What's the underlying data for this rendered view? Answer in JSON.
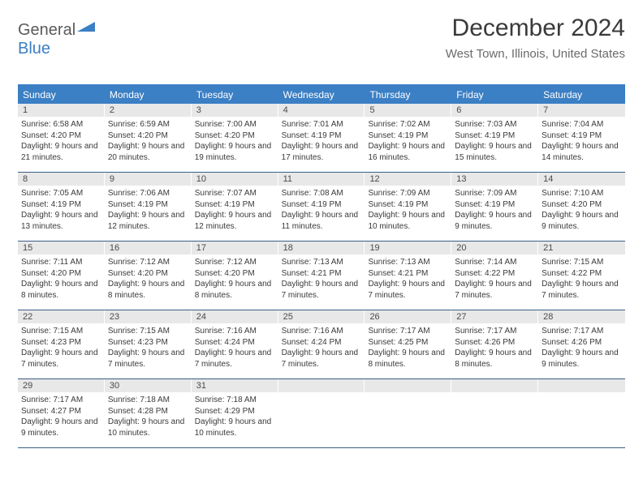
{
  "brand": {
    "part1": "General",
    "part2": "Blue"
  },
  "title": "December 2024",
  "location": "West Town, Illinois, United States",
  "colors": {
    "accent": "#3b7fc4",
    "header_bg": "#e8e8e8",
    "border": "#3b5f84",
    "text": "#3a3a3a",
    "muted": "#6a6a6a"
  },
  "day_labels": [
    "Sunday",
    "Monday",
    "Tuesday",
    "Wednesday",
    "Thursday",
    "Friday",
    "Saturday"
  ],
  "weeks": [
    [
      {
        "n": "1",
        "sunrise": "6:58 AM",
        "sunset": "4:20 PM",
        "daylight": "9 hours and 21 minutes."
      },
      {
        "n": "2",
        "sunrise": "6:59 AM",
        "sunset": "4:20 PM",
        "daylight": "9 hours and 20 minutes."
      },
      {
        "n": "3",
        "sunrise": "7:00 AM",
        "sunset": "4:20 PM",
        "daylight": "9 hours and 19 minutes."
      },
      {
        "n": "4",
        "sunrise": "7:01 AM",
        "sunset": "4:19 PM",
        "daylight": "9 hours and 17 minutes."
      },
      {
        "n": "5",
        "sunrise": "7:02 AM",
        "sunset": "4:19 PM",
        "daylight": "9 hours and 16 minutes."
      },
      {
        "n": "6",
        "sunrise": "7:03 AM",
        "sunset": "4:19 PM",
        "daylight": "9 hours and 15 minutes."
      },
      {
        "n": "7",
        "sunrise": "7:04 AM",
        "sunset": "4:19 PM",
        "daylight": "9 hours and 14 minutes."
      }
    ],
    [
      {
        "n": "8",
        "sunrise": "7:05 AM",
        "sunset": "4:19 PM",
        "daylight": "9 hours and 13 minutes."
      },
      {
        "n": "9",
        "sunrise": "7:06 AM",
        "sunset": "4:19 PM",
        "daylight": "9 hours and 12 minutes."
      },
      {
        "n": "10",
        "sunrise": "7:07 AM",
        "sunset": "4:19 PM",
        "daylight": "9 hours and 12 minutes."
      },
      {
        "n": "11",
        "sunrise": "7:08 AM",
        "sunset": "4:19 PM",
        "daylight": "9 hours and 11 minutes."
      },
      {
        "n": "12",
        "sunrise": "7:09 AM",
        "sunset": "4:19 PM",
        "daylight": "9 hours and 10 minutes."
      },
      {
        "n": "13",
        "sunrise": "7:09 AM",
        "sunset": "4:19 PM",
        "daylight": "9 hours and 9 minutes."
      },
      {
        "n": "14",
        "sunrise": "7:10 AM",
        "sunset": "4:20 PM",
        "daylight": "9 hours and 9 minutes."
      }
    ],
    [
      {
        "n": "15",
        "sunrise": "7:11 AM",
        "sunset": "4:20 PM",
        "daylight": "9 hours and 8 minutes."
      },
      {
        "n": "16",
        "sunrise": "7:12 AM",
        "sunset": "4:20 PM",
        "daylight": "9 hours and 8 minutes."
      },
      {
        "n": "17",
        "sunrise": "7:12 AM",
        "sunset": "4:20 PM",
        "daylight": "9 hours and 8 minutes."
      },
      {
        "n": "18",
        "sunrise": "7:13 AM",
        "sunset": "4:21 PM",
        "daylight": "9 hours and 7 minutes."
      },
      {
        "n": "19",
        "sunrise": "7:13 AM",
        "sunset": "4:21 PM",
        "daylight": "9 hours and 7 minutes."
      },
      {
        "n": "20",
        "sunrise": "7:14 AM",
        "sunset": "4:22 PM",
        "daylight": "9 hours and 7 minutes."
      },
      {
        "n": "21",
        "sunrise": "7:15 AM",
        "sunset": "4:22 PM",
        "daylight": "9 hours and 7 minutes."
      }
    ],
    [
      {
        "n": "22",
        "sunrise": "7:15 AM",
        "sunset": "4:23 PM",
        "daylight": "9 hours and 7 minutes."
      },
      {
        "n": "23",
        "sunrise": "7:15 AM",
        "sunset": "4:23 PM",
        "daylight": "9 hours and 7 minutes."
      },
      {
        "n": "24",
        "sunrise": "7:16 AM",
        "sunset": "4:24 PM",
        "daylight": "9 hours and 7 minutes."
      },
      {
        "n": "25",
        "sunrise": "7:16 AM",
        "sunset": "4:24 PM",
        "daylight": "9 hours and 7 minutes."
      },
      {
        "n": "26",
        "sunrise": "7:17 AM",
        "sunset": "4:25 PM",
        "daylight": "9 hours and 8 minutes."
      },
      {
        "n": "27",
        "sunrise": "7:17 AM",
        "sunset": "4:26 PM",
        "daylight": "9 hours and 8 minutes."
      },
      {
        "n": "28",
        "sunrise": "7:17 AM",
        "sunset": "4:26 PM",
        "daylight": "9 hours and 9 minutes."
      }
    ],
    [
      {
        "n": "29",
        "sunrise": "7:17 AM",
        "sunset": "4:27 PM",
        "daylight": "9 hours and 9 minutes."
      },
      {
        "n": "30",
        "sunrise": "7:18 AM",
        "sunset": "4:28 PM",
        "daylight": "9 hours and 10 minutes."
      },
      {
        "n": "31",
        "sunrise": "7:18 AM",
        "sunset": "4:29 PM",
        "daylight": "9 hours and 10 minutes."
      },
      {
        "empty": true
      },
      {
        "empty": true
      },
      {
        "empty": true
      },
      {
        "empty": true
      }
    ]
  ],
  "labels": {
    "sunrise": "Sunrise:",
    "sunset": "Sunset:",
    "daylight": "Daylight:"
  }
}
